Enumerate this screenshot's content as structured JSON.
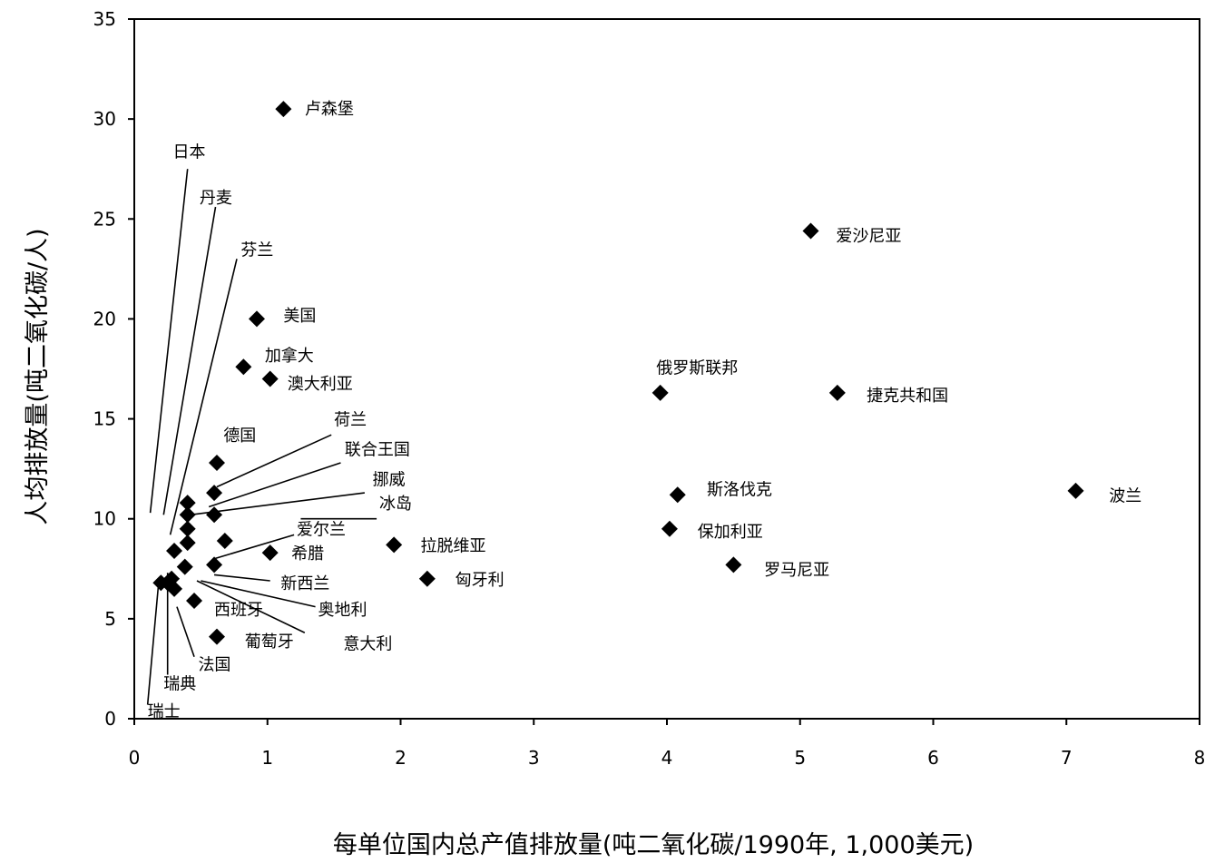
{
  "chart_data": {
    "type": "scatter",
    "xlabel": "每单位国内总产值排放量(吨二氧化碳/1990年, 1,000美元)",
    "ylabel": "人均排放量(吨二氧化碳/人)",
    "xlim": [
      0,
      8
    ],
    "ylim": [
      0,
      35
    ],
    "xticks": [
      "0",
      "1",
      "2",
      "3",
      "4",
      "5",
      "6",
      "7",
      "8"
    ],
    "yticks": [
      "0",
      "5",
      "10",
      "15",
      "20",
      "25",
      "30",
      "35"
    ],
    "grid": false,
    "points": [
      {
        "label": "卢森堡",
        "x": 1.12,
        "y": 30.5
      },
      {
        "label": "爱沙尼亚",
        "x": 5.08,
        "y": 24.4
      },
      {
        "label": "美国",
        "x": 0.92,
        "y": 20.0
      },
      {
        "label": "加拿大",
        "x": 0.82,
        "y": 17.6
      },
      {
        "label": "澳大利亚",
        "x": 1.02,
        "y": 17.0
      },
      {
        "label": "俄罗斯联邦",
        "x": 3.95,
        "y": 16.3
      },
      {
        "label": "捷克共和国",
        "x": 5.28,
        "y": 16.3
      },
      {
        "label": "德国",
        "x": 0.62,
        "y": 12.8
      },
      {
        "label": "斯洛伐克",
        "x": 4.08,
        "y": 11.2
      },
      {
        "label": "波兰",
        "x": 7.07,
        "y": 11.4
      },
      {
        "label": "保加利亚",
        "x": 4.02,
        "y": 9.5
      },
      {
        "label": "罗马尼亚",
        "x": 4.5,
        "y": 7.7
      },
      {
        "label": "拉脱维亚",
        "x": 1.95,
        "y": 8.7
      },
      {
        "label": "匈牙利",
        "x": 2.2,
        "y": 7.0
      },
      {
        "label": "爱尔兰",
        "x": 0.68,
        "y": 8.9
      },
      {
        "label": "希腊",
        "x": 1.02,
        "y": 8.3
      },
      {
        "label": "新西兰",
        "x": 0.6,
        "y": 7.7
      },
      {
        "label": "西班牙",
        "x": 0.45,
        "y": 5.9
      },
      {
        "label": "葡萄牙",
        "x": 0.62,
        "y": 4.1
      },
      {
        "label": "荷兰",
        "x": 0.6,
        "y": 11.3
      },
      {
        "label": "联合王国",
        "x": 0.6,
        "y": 10.2
      },
      {
        "label": "挪威",
        "x": 0.4,
        "y": 10.8
      },
      {
        "label": "冰岛",
        "x": 0.4,
        "y": 10.2
      },
      {
        "label": "日本",
        "x": 0.4,
        "y": 9.5
      },
      {
        "label": "丹麦",
        "x": 0.4,
        "y": 8.8
      },
      {
        "label": "芬兰",
        "x": 0.3,
        "y": 8.4
      },
      {
        "label": "奥地利",
        "x": 0.38,
        "y": 7.6
      },
      {
        "label": "意大利",
        "x": 0.28,
        "y": 7.0
      },
      {
        "label": "法国",
        "x": 0.3,
        "y": 6.5
      },
      {
        "label": "瑞典",
        "x": 0.25,
        "y": 6.8
      },
      {
        "label": "瑞士",
        "x": 0.2,
        "y": 6.8
      }
    ],
    "annotations": [
      {
        "text": "卢森堡",
        "x": 1.28,
        "y": 30.55
      },
      {
        "text": "日本",
        "x": 0.29,
        "y": 28.4
      },
      {
        "text": "丹麦",
        "x": 0.49,
        "y": 26.1
      },
      {
        "text": "芬兰",
        "x": 0.8,
        "y": 23.5
      },
      {
        "text": "美国",
        "x": 1.12,
        "y": 20.2
      },
      {
        "text": "加拿大",
        "x": 0.98,
        "y": 18.2
      },
      {
        "text": "澳大利亚",
        "x": 1.15,
        "y": 16.8
      },
      {
        "text": "荷兰",
        "x": 1.5,
        "y": 15.0
      },
      {
        "text": "德国",
        "x": 0.67,
        "y": 14.2
      },
      {
        "text": "联合王国",
        "x": 1.58,
        "y": 13.5
      },
      {
        "text": "挪威",
        "x": 1.79,
        "y": 12.0
      },
      {
        "text": "冰岛",
        "x": 1.84,
        "y": 10.8
      },
      {
        "text": "爱尔兰",
        "x": 1.22,
        "y": 9.5
      },
      {
        "text": "希腊",
        "x": 1.18,
        "y": 8.3
      },
      {
        "text": "新西兰",
        "x": 1.1,
        "y": 6.8
      },
      {
        "text": "西班牙",
        "x": 0.6,
        "y": 5.5
      },
      {
        "text": "奥地利",
        "x": 1.38,
        "y": 5.5
      },
      {
        "text": "葡萄牙",
        "x": 0.83,
        "y": 3.9
      },
      {
        "text": "意大利",
        "x": 1.57,
        "y": 3.8
      },
      {
        "text": "法国",
        "x": 0.48,
        "y": 2.75
      },
      {
        "text": "瑞典",
        "x": 0.22,
        "y": 1.8
      },
      {
        "text": "瑞士",
        "x": 0.1,
        "y": 0.4
      },
      {
        "text": "爱沙尼亚",
        "x": 5.27,
        "y": 24.2
      },
      {
        "text": "俄罗斯联邦",
        "x": 3.92,
        "y": 17.6
      },
      {
        "text": "捷克共和国",
        "x": 5.5,
        "y": 16.2
      },
      {
        "text": "斯洛伐克",
        "x": 4.3,
        "y": 11.5
      },
      {
        "text": "波兰",
        "x": 7.32,
        "y": 11.2
      },
      {
        "text": "保加利亚",
        "x": 4.23,
        "y": 9.4
      },
      {
        "text": "罗马尼亚",
        "x": 4.73,
        "y": 7.5
      },
      {
        "text": "拉脱维亚",
        "x": 2.15,
        "y": 8.7
      },
      {
        "text": "匈牙利",
        "x": 2.41,
        "y": 7.0
      }
    ],
    "leaders": [
      [
        [
          0.12,
          10.3
        ],
        [
          0.4,
          27.5
        ]
      ],
      [
        [
          0.22,
          10.2
        ],
        [
          0.61,
          25.6
        ]
      ],
      [
        [
          0.27,
          9.2
        ],
        [
          0.77,
          23.0
        ]
      ],
      [
        [
          0.62,
          11.6
        ],
        [
          1.48,
          14.2
        ]
      ],
      [
        [
          0.56,
          10.6
        ],
        [
          1.55,
          12.8
        ]
      ],
      [
        [
          0.42,
          10.2
        ],
        [
          1.73,
          11.3
        ]
      ],
      [
        [
          1.25,
          10.0
        ],
        [
          1.82,
          10.0
        ]
      ],
      [
        [
          0.6,
          8.0
        ],
        [
          1.2,
          9.2
        ]
      ],
      [
        [
          0.6,
          7.2
        ],
        [
          1.02,
          6.9
        ]
      ],
      [
        [
          0.5,
          6.9
        ],
        [
          1.36,
          5.6
        ]
      ],
      [
        [
          0.47,
          6.9
        ],
        [
          1.28,
          4.3
        ]
      ],
      [
        [
          0.32,
          5.6
        ],
        [
          0.45,
          3.1
        ]
      ],
      [
        [
          0.25,
          7.3
        ],
        [
          0.25,
          2.2
        ]
      ],
      [
        [
          0.18,
          6.6
        ],
        [
          0.1,
          0.7
        ]
      ]
    ]
  }
}
